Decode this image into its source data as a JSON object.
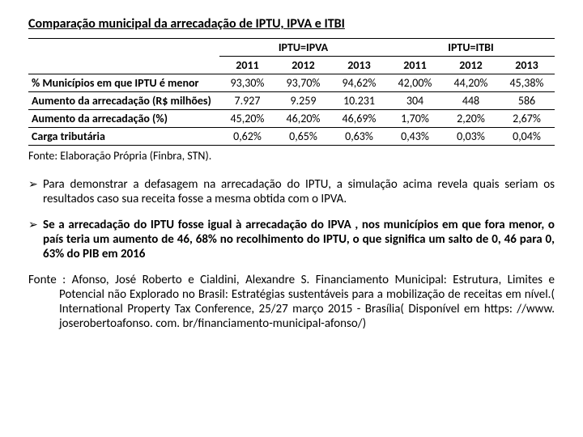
{
  "title": "Comparação municipal da arrecadação de IPTU, IPVA e ITBI",
  "table": {
    "group1_header": "IPTU=IPVA",
    "group2_header": "IPTU=ITBI",
    "years": [
      "2011",
      "2012",
      "2013",
      "2011",
      "2012",
      "2013"
    ],
    "rows": [
      {
        "label": "% Municípios em que IPTU é menor",
        "vals": [
          "93,30%",
          "93,70%",
          "94,62%",
          "42,00%",
          "44,20%",
          "45,38%"
        ]
      },
      {
        "label": "Aumento da arrecadação (R$ milhões)",
        "vals": [
          "7.927",
          "9.259",
          "10.231",
          "304",
          "448",
          "586"
        ]
      },
      {
        "label": "Aumento da arrecadação (%)",
        "vals": [
          "45,20%",
          "46,20%",
          "46,69%",
          "1,70%",
          "2,20%",
          "2,67%"
        ]
      },
      {
        "label": "Carga tributária",
        "vals": [
          "0,62%",
          "0,65%",
          "0,63%",
          "0,43%",
          "0,03%",
          "0,04%"
        ]
      }
    ]
  },
  "table_source": "Fonte: Elaboração Própria (Finbra, STN).",
  "bullet1": "Para demonstrar a defasagem na arrecadação do IPTU, a simulação acima revela quais seriam os resultados caso sua receita fosse a mesma obtida com o IPVA.",
  "bullet2": "Se a arrecadação do IPTU fosse igual à arrecadação do IPVA , nos municípios em que fora menor, o país teria um aumento de 46, 68% no recolhimento do IPTU, o que significa um salto de 0, 46 para 0, 63% do PIB em 2016",
  "reference": "Fonte : Afonso, José Roberto e Cialdini, Alexandre S. Financiamento Municipal: Estrutura, Limites e Potencial não Explorado no Brasil: Estratégias sustentáveis para a mobilização de receitas em nível.( International Property Tax Conference, 25/27 março 2015 - Brasília( Disponível em https: //www. joserobertoafonso. com. br/financiamento-municipal-afonso/)"
}
